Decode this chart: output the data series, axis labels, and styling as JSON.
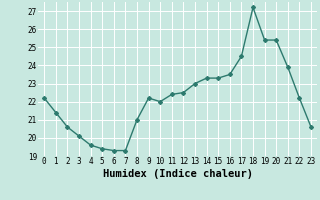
{
  "x": [
    0,
    1,
    2,
    3,
    4,
    5,
    6,
    7,
    8,
    9,
    10,
    11,
    12,
    13,
    14,
    15,
    16,
    17,
    18,
    19,
    20,
    21,
    22,
    23
  ],
  "y": [
    22.2,
    21.4,
    20.6,
    20.1,
    19.6,
    19.4,
    19.3,
    19.3,
    21.0,
    22.2,
    22.0,
    22.4,
    22.5,
    23.0,
    23.3,
    23.3,
    23.5,
    24.5,
    27.2,
    25.4,
    25.4,
    23.9,
    22.2,
    20.6
  ],
  "line_color": "#2d7a6e",
  "marker": "D",
  "marker_size": 2,
  "bg_color": "#c8e8e0",
  "grid_color": "#ffffff",
  "xlabel": "Humidex (Indice chaleur)",
  "ylim": [
    19,
    27.5
  ],
  "yticks": [
    19,
    20,
    21,
    22,
    23,
    24,
    25,
    26,
    27
  ],
  "xticks": [
    0,
    1,
    2,
    3,
    4,
    5,
    6,
    7,
    8,
    9,
    10,
    11,
    12,
    13,
    14,
    15,
    16,
    17,
    18,
    19,
    20,
    21,
    22,
    23
  ],
  "tick_fontsize": 5.5,
  "xlabel_fontsize": 7.5,
  "linewidth": 1.0
}
